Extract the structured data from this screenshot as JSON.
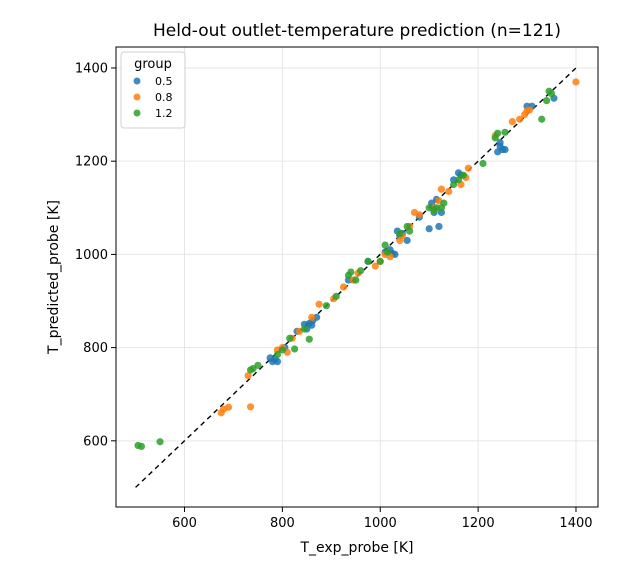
{
  "chart_data": {
    "type": "scatter",
    "title": "Held-out outlet-temperature prediction (n=121)",
    "xlabel": "T_exp_probe [K]",
    "ylabel": "T_predicted_probe [K]",
    "xlim": [
      460,
      1445
    ],
    "ylim": [
      458,
      1445
    ],
    "xticks": [
      600,
      800,
      1000,
      1200,
      1400
    ],
    "yticks": [
      600,
      800,
      1000,
      1200,
      1400
    ],
    "grid": true,
    "legend": {
      "title": "group",
      "position": "top-left"
    },
    "reference_line": {
      "type": "identity",
      "from": 500,
      "to": 1400,
      "style": "dashed"
    },
    "series": [
      {
        "name": "0.5",
        "color": "#1f77b4",
        "points": [
          [
            775,
            778
          ],
          [
            780,
            770
          ],
          [
            785,
            775
          ],
          [
            790,
            770
          ],
          [
            830,
            835
          ],
          [
            845,
            850
          ],
          [
            850,
            840
          ],
          [
            855,
            852
          ],
          [
            860,
            848
          ],
          [
            862,
            858
          ],
          [
            1010,
            1005
          ],
          [
            1020,
            1010
          ],
          [
            1030,
            1000
          ],
          [
            1035,
            1050
          ],
          [
            1045,
            1045
          ],
          [
            1055,
            1030
          ],
          [
            1080,
            1080
          ],
          [
            1100,
            1055
          ],
          [
            1110,
            1090
          ],
          [
            1115,
            1118
          ],
          [
            1120,
            1060
          ],
          [
            1125,
            1090
          ],
          [
            1150,
            1160
          ],
          [
            1160,
            1175
          ],
          [
            1240,
            1220
          ],
          [
            1245,
            1232
          ],
          [
            1250,
            1225
          ],
          [
            1255,
            1225
          ],
          [
            1300,
            1318
          ],
          [
            1310,
            1318
          ],
          [
            1355,
            1335
          ],
          [
            1165,
            1170
          ],
          [
            1105,
            1110
          ],
          [
            1025,
            1002
          ],
          [
            1040,
            1040
          ],
          [
            870,
            865
          ],
          [
            1245,
            1240
          ],
          [
            975,
            985
          ],
          [
            935,
            945
          ],
          [
            805,
            800
          ]
        ]
      },
      {
        "name": "0.8",
        "color": "#ff7f0e",
        "points": [
          [
            675,
            660
          ],
          [
            680,
            668
          ],
          [
            690,
            672
          ],
          [
            735,
            673
          ],
          [
            730,
            740
          ],
          [
            790,
            795
          ],
          [
            800,
            800
          ],
          [
            810,
            790
          ],
          [
            820,
            820
          ],
          [
            835,
            835
          ],
          [
            875,
            893
          ],
          [
            905,
            905
          ],
          [
            925,
            930
          ],
          [
            945,
            945
          ],
          [
            990,
            975
          ],
          [
            1000,
            985
          ],
          [
            1010,
            1000
          ],
          [
            1020,
            995
          ],
          [
            1040,
            1030
          ],
          [
            1060,
            1060
          ],
          [
            1070,
            1090
          ],
          [
            1080,
            1085
          ],
          [
            1110,
            1100
          ],
          [
            1125,
            1140
          ],
          [
            1140,
            1135
          ],
          [
            1165,
            1150
          ],
          [
            1175,
            1165
          ],
          [
            1180,
            1185
          ],
          [
            1270,
            1285
          ],
          [
            1285,
            1290
          ],
          [
            1295,
            1300
          ],
          [
            1300,
            1308
          ],
          [
            1400,
            1370
          ],
          [
            1120,
            1115
          ],
          [
            1045,
            1040
          ],
          [
            955,
            960
          ],
          [
            860,
            865
          ],
          [
            1235,
            1255
          ],
          [
            1110,
            1095
          ],
          [
            1305,
            1310
          ]
        ]
      },
      {
        "name": "1.2",
        "color": "#2ca02c",
        "points": [
          [
            505,
            590
          ],
          [
            512,
            588
          ],
          [
            550,
            598
          ],
          [
            735,
            752
          ],
          [
            740,
            755
          ],
          [
            750,
            762
          ],
          [
            790,
            785
          ],
          [
            800,
            795
          ],
          [
            815,
            820
          ],
          [
            825,
            797
          ],
          [
            845,
            840
          ],
          [
            855,
            818
          ],
          [
            890,
            890
          ],
          [
            910,
            910
          ],
          [
            935,
            955
          ],
          [
            940,
            962
          ],
          [
            950,
            945
          ],
          [
            960,
            965
          ],
          [
            975,
            985
          ],
          [
            1000,
            985
          ],
          [
            1010,
            1020
          ],
          [
            1015,
            1005
          ],
          [
            1040,
            1045
          ],
          [
            1055,
            1060
          ],
          [
            1060,
            1050
          ],
          [
            1100,
            1100
          ],
          [
            1110,
            1095
          ],
          [
            1115,
            1100
          ],
          [
            1125,
            1100
          ],
          [
            1130,
            1110
          ],
          [
            1150,
            1150
          ],
          [
            1170,
            1170
          ],
          [
            1210,
            1195
          ],
          [
            1235,
            1250
          ],
          [
            1240,
            1260
          ],
          [
            1255,
            1262
          ],
          [
            1330,
            1290
          ],
          [
            1340,
            1330
          ],
          [
            1345,
            1350
          ],
          [
            1350,
            1345
          ],
          [
            1160,
            1160
          ]
        ]
      }
    ]
  }
}
